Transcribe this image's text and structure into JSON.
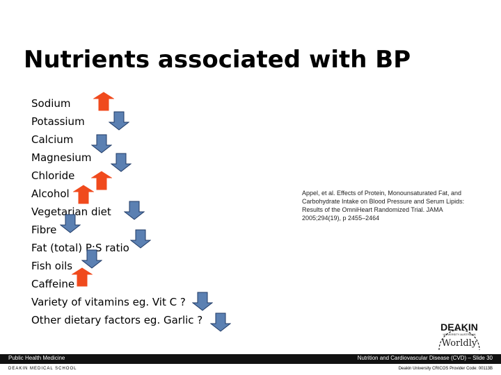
{
  "slide": {
    "title": "Nutrients associated with BP"
  },
  "nutrients": [
    {
      "label": "Sodium",
      "effect": "up"
    },
    {
      "label": "Potassium",
      "effect": "down"
    },
    {
      "label": "Calcium",
      "effect": "down"
    },
    {
      "label": "Magnesium",
      "effect": "down"
    },
    {
      "label": "Chloride",
      "effect": "up"
    },
    {
      "label": "Alcohol",
      "effect": "up"
    },
    {
      "label": "Vegetarian diet",
      "effect": "down"
    },
    {
      "label": "Fibre",
      "effect": "down"
    },
    {
      "label": "Fat (total) P:S ratio",
      "effect": "down"
    },
    {
      "label": "Fish oils",
      "effect": "down"
    },
    {
      "label": "Caffeine",
      "effect": "up"
    },
    {
      "label": "Variety of vitamins eg. Vit C ?",
      "effect": "down"
    },
    {
      "label": "Other dietary factors eg. Garlic ?",
      "effect": "down"
    }
  ],
  "citation": "Appel, et al. Effects of Protein, Monounsaturated Fat, and Carbohydrate Intake on Blood Pressure and Serum Lipids: Results of the OmniHeart Randomized Trial. JAMA 2005;294(19), p 2455–2464",
  "logo": {
    "name": "DEAKIN",
    "subtitle": "UNIVERSITY AUSTRALIA",
    "tagline": "Worldly"
  },
  "footer": {
    "left": "Public Health Medicine",
    "right": "Nutrition and Cardiovascular Disease (CVD) – Slide 30",
    "sub_left": "DEAKIN MEDICAL SCHOOL",
    "sub_right": "Deakin University CRICOS Provider Code: 00113B"
  },
  "colors": {
    "up_arrow": "#f04a1d",
    "down_arrow": "#5b80b2",
    "down_arrow_outline": "#1f3a66"
  }
}
